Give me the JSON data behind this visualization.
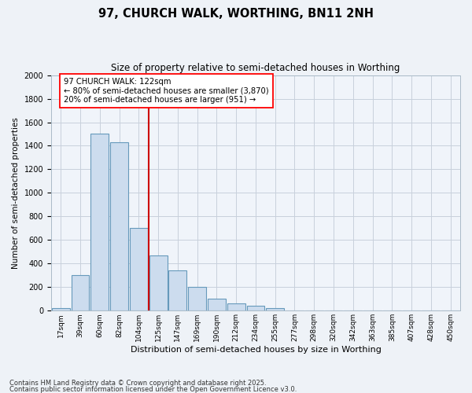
{
  "title": "97, CHURCH WALK, WORTHING, BN11 2NH",
  "subtitle": "Size of property relative to semi-detached houses in Worthing",
  "xlabel": "Distribution of semi-detached houses by size in Worthing",
  "ylabel": "Number of semi-detached properties",
  "categories": [
    "17sqm",
    "39sqm",
    "60sqm",
    "82sqm",
    "104sqm",
    "125sqm",
    "147sqm",
    "169sqm",
    "190sqm",
    "212sqm",
    "234sqm",
    "255sqm",
    "277sqm",
    "298sqm",
    "320sqm",
    "342sqm",
    "363sqm",
    "385sqm",
    "407sqm",
    "428sqm",
    "450sqm"
  ],
  "values": [
    20,
    300,
    1500,
    1430,
    700,
    470,
    340,
    200,
    100,
    60,
    40,
    25,
    0,
    0,
    0,
    0,
    0,
    0,
    0,
    0,
    0
  ],
  "bar_color": "#ccdcee",
  "bar_edge_color": "#6699bb",
  "vline_color": "#cc0000",
  "vline_x_idx": 4,
  "annotation_text_line1": "97 CHURCH WALK: 122sqm",
  "annotation_text_line2": "← 80% of semi-detached houses are smaller (3,870)",
  "annotation_text_line3": "20% of semi-detached houses are larger (951) →",
  "ylim": [
    0,
    2000
  ],
  "yticks": [
    0,
    200,
    400,
    600,
    800,
    1000,
    1200,
    1400,
    1600,
    1800,
    2000
  ],
  "footnote1": "Contains HM Land Registry data © Crown copyright and database right 2025.",
  "footnote2": "Contains public sector information licensed under the Open Government Licence v3.0.",
  "background_color": "#eef2f7",
  "plot_background_color": "#f0f4fa",
  "grid_color": "#c8d0dc"
}
